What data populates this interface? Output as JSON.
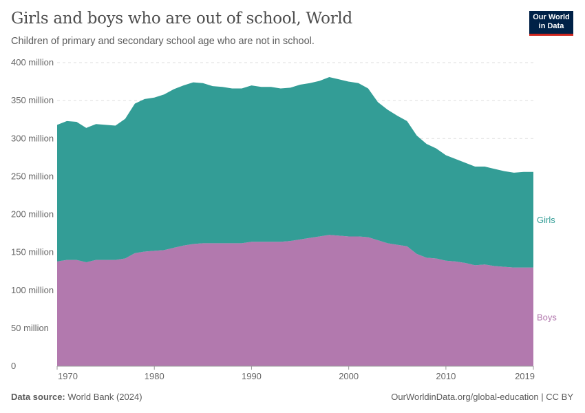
{
  "title": "Girls and boys who are out of school, World",
  "subtitle": "Children of primary and secondary school age who are not in school.",
  "logo": {
    "line1": "Our World",
    "line2": "in Data"
  },
  "footer": {
    "source_label": "Data source:",
    "source": "World Bank (2024)",
    "license": "OurWorldinData.org/global-education | CC BY"
  },
  "chart_data": {
    "type": "area",
    "stacked": true,
    "title": "Girls and boys who are out of school, World",
    "x": [
      1970,
      1971,
      1972,
      1973,
      1974,
      1975,
      1976,
      1977,
      1978,
      1979,
      1980,
      1981,
      1982,
      1983,
      1984,
      1985,
      1986,
      1987,
      1988,
      1989,
      1990,
      1991,
      1992,
      1993,
      1994,
      1995,
      1996,
      1997,
      1998,
      1999,
      2000,
      2001,
      2002,
      2003,
      2004,
      2005,
      2006,
      2007,
      2008,
      2009,
      2010,
      2011,
      2012,
      2013,
      2014,
      2015,
      2016,
      2017,
      2018,
      2019
    ],
    "series": [
      {
        "name": "Boys",
        "color": "#b279ae",
        "values": [
          138,
          140,
          140,
          137,
          140,
          140,
          140,
          142,
          149,
          151,
          152,
          153,
          156,
          159,
          161,
          162,
          162,
          162,
          162,
          162,
          164,
          164,
          164,
          164,
          165,
          167,
          169,
          171,
          173,
          172,
          171,
          171,
          170,
          166,
          162,
          160,
          158,
          148,
          143,
          142,
          139,
          138,
          136,
          133,
          134,
          132,
          131,
          130,
          130,
          130
        ]
      },
      {
        "name": "Girls",
        "color": "#339d96",
        "values": [
          180,
          183,
          182,
          177,
          179,
          178,
          177,
          184,
          197,
          201,
          202,
          205,
          209,
          211,
          213,
          211,
          207,
          206,
          204,
          204,
          206,
          204,
          204,
          202,
          202,
          204,
          204,
          205,
          208,
          206,
          204,
          202,
          196,
          182,
          176,
          170,
          165,
          156,
          150,
          145,
          139,
          135,
          132,
          130,
          129,
          128,
          126,
          125,
          126,
          126
        ]
      }
    ],
    "y_unit": "million",
    "ylim": [
      0,
      400
    ],
    "yticks": [
      {
        "v": 0,
        "label": "0"
      },
      {
        "v": 50,
        "label": "50 million"
      },
      {
        "v": 100,
        "label": "100 million"
      },
      {
        "v": 150,
        "label": "150 million"
      },
      {
        "v": 200,
        "label": "200 million"
      },
      {
        "v": 250,
        "label": "250 million"
      },
      {
        "v": 300,
        "label": "300 million"
      },
      {
        "v": 350,
        "label": "350 million"
      },
      {
        "v": 400,
        "label": "400 million"
      }
    ],
    "xticks": [
      1970,
      1980,
      1990,
      2000,
      2010,
      2019
    ],
    "xlim": [
      1970,
      2019
    ],
    "grid": "horizontal dashed",
    "legend": "inline-right"
  }
}
